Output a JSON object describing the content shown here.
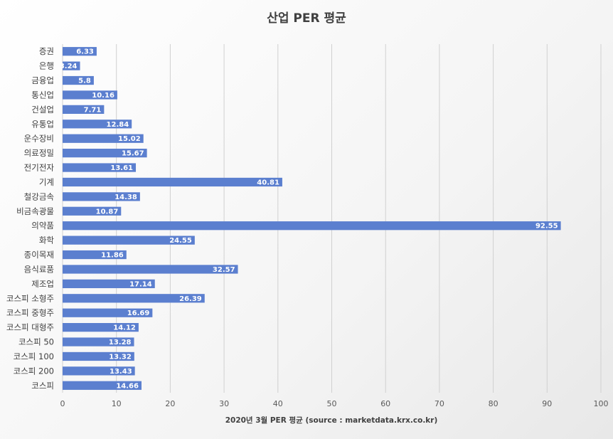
{
  "chart_data": {
    "type": "bar",
    "orientation": "horizontal",
    "title": "산업 PER 평균",
    "xlabel": "2020년 3월 PER 평균 (source : marketdata.krx.co.kr)",
    "ylabel": "",
    "xlim": [
      0,
      100
    ],
    "xticks": [
      0,
      10,
      20,
      30,
      40,
      50,
      60,
      70,
      80,
      90,
      100
    ],
    "grid": "vertical",
    "bar_color": "#5b7fcf",
    "categories": [
      "증권",
      "은행",
      "금융업",
      "통신업",
      "건설업",
      "유통업",
      "운수장비",
      "의료정밀",
      "전기전자",
      "기계",
      "철강금속",
      "비금속광물",
      "의약품",
      "화학",
      "종이목재",
      "음식료품",
      "제조업",
      "코스피 소형주",
      "코스피 중형주",
      "코스피 대형주",
      "코스피 50",
      "코스피 100",
      "코스피 200",
      "코스피"
    ],
    "values": [
      6.33,
      3.24,
      5.8,
      10.16,
      7.71,
      12.84,
      15.02,
      15.67,
      13.61,
      40.81,
      14.38,
      10.87,
      92.55,
      24.55,
      11.86,
      32.57,
      17.14,
      26.39,
      16.69,
      14.12,
      13.28,
      13.32,
      13.43,
      14.66
    ]
  }
}
